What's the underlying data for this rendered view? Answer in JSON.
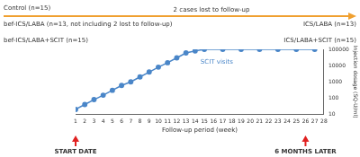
{
  "chart_data": {
    "type": "line",
    "x_label": "Follow-up period (week)",
    "y_label": "Injection dosage (SQ-U/ml)",
    "log": "y",
    "grid": false,
    "marker": "circle",
    "series": [
      {
        "name": "SCIT visits",
        "color": "#4a86c8",
        "x": [
          1,
          2,
          3,
          4,
          5,
          6,
          7,
          8,
          9,
          10,
          11,
          12,
          13,
          14,
          15,
          17,
          19,
          21,
          23,
          25,
          27
        ],
        "values": [
          20,
          40,
          80,
          150,
          300,
          600,
          1000,
          2000,
          4000,
          8000,
          15000,
          30000,
          60000,
          80000,
          100000,
          100000,
          100000,
          100000,
          100000,
          100000,
          100000
        ]
      }
    ],
    "xlim": [
      1,
      28
    ],
    "xticks": [
      1,
      2,
      3,
      4,
      5,
      6,
      7,
      8,
      9,
      10,
      11,
      12,
      13,
      14,
      15,
      16,
      17,
      18,
      19,
      20,
      21,
      22,
      23,
      24,
      25,
      26,
      27,
      28
    ],
    "ylim": [
      10,
      100000
    ],
    "yticks": [
      10,
      100,
      1000,
      10000,
      100000
    ],
    "annotations": [
      {
        "text": "Control (n=15)"
      },
      {
        "text": "2 cases lost to follow-up"
      },
      {
        "text": "bef-ICS/LABA (n=13, not including 2 lost to follow-up)"
      },
      {
        "text": "ICS/LABA (n=13)"
      },
      {
        "text": "bef-ICS/LABA+SCIT (n=15)"
      },
      {
        "text": "ICS/LABA+SCIT (n=15)"
      },
      {
        "text": "START DATE",
        "x": 1
      },
      {
        "text": "6 MONTHS LATER",
        "x": 26
      }
    ]
  }
}
